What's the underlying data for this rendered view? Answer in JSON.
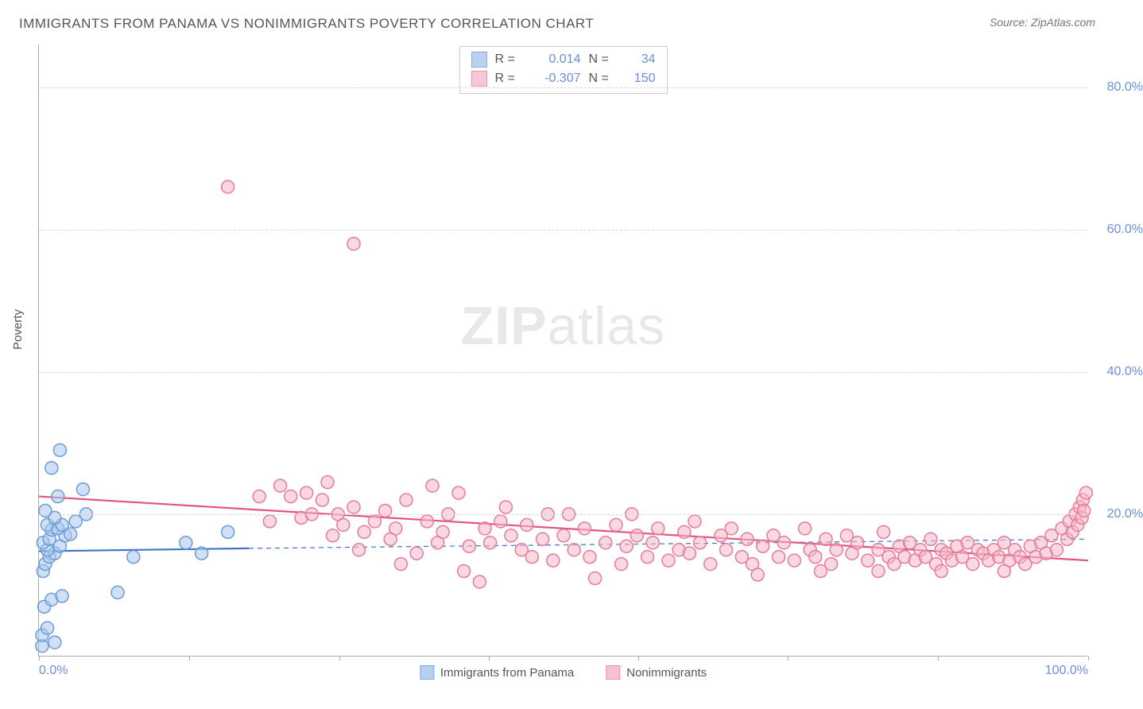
{
  "title": "IMMIGRANTS FROM PANAMA VS NONIMMIGRANTS POVERTY CORRELATION CHART",
  "source_label": "Source:",
  "source_value": "ZipAtlas.com",
  "ylabel": "Poverty",
  "watermark_a": "ZIP",
  "watermark_b": "atlas",
  "chart": {
    "type": "scatter",
    "xlim": [
      0,
      100
    ],
    "ylim": [
      0,
      86
    ],
    "y_ticks": [
      20,
      40,
      60,
      80
    ],
    "y_tick_labels": [
      "20.0%",
      "40.0%",
      "60.0%",
      "80.0%"
    ],
    "x_tick_marks": [
      0,
      14.3,
      28.6,
      42.9,
      57.1,
      71.4,
      85.7,
      100
    ],
    "x_tick_labels": [
      {
        "pos": 0,
        "label": "0.0%"
      },
      {
        "pos": 100,
        "label": "100.0%"
      }
    ],
    "grid_color": "#d8d8d8",
    "axis_color": "#aaaaaa",
    "tick_label_color": "#6b8fd6",
    "background_color": "#ffffff",
    "marker_radius": 8,
    "marker_stroke_width": 1.5,
    "series": [
      {
        "name": "Immigrants from Panama",
        "fill_color": "#a9c7ec",
        "stroke_color": "#6b9bd8",
        "fill_opacity": 0.55,
        "R": "0.014",
        "N": "34",
        "trend": {
          "x1": 0,
          "y1": 14.8,
          "x2": 20,
          "y2": 15.2,
          "color": "#3f74c7",
          "width": 2.2,
          "dash_x2": 100,
          "dash_y2": 16.5,
          "dash_pattern": "6,5"
        },
        "points": [
          [
            0.3,
            1.5
          ],
          [
            0.3,
            3
          ],
          [
            0.8,
            4
          ],
          [
            1.5,
            2
          ],
          [
            0.5,
            7
          ],
          [
            1.2,
            8
          ],
          [
            2.2,
            8.5
          ],
          [
            7.5,
            9
          ],
          [
            0.4,
            12
          ],
          [
            0.6,
            13
          ],
          [
            1.0,
            14
          ],
          [
            1.5,
            14.5
          ],
          [
            0.8,
            15
          ],
          [
            2.0,
            15.5
          ],
          [
            0.4,
            16
          ],
          [
            1.0,
            16.5
          ],
          [
            2.5,
            17
          ],
          [
            3.0,
            17.2
          ],
          [
            1.2,
            17.8
          ],
          [
            1.8,
            18
          ],
          [
            0.8,
            18.5
          ],
          [
            2.2,
            18.5
          ],
          [
            3.5,
            19
          ],
          [
            1.5,
            19.5
          ],
          [
            4.5,
            20
          ],
          [
            0.6,
            20.5
          ],
          [
            1.8,
            22.5
          ],
          [
            4.2,
            23.5
          ],
          [
            1.2,
            26.5
          ],
          [
            2.0,
            29
          ],
          [
            14,
            16
          ],
          [
            15.5,
            14.5
          ],
          [
            18,
            17.5
          ],
          [
            9,
            14
          ]
        ]
      },
      {
        "name": "Nonimmigrants",
        "fill_color": "#f5b8c8",
        "stroke_color": "#e77a9a",
        "fill_opacity": 0.55,
        "R": "-0.307",
        "N": "150",
        "trend": {
          "x1": 0,
          "y1": 22.5,
          "x2": 100,
          "y2": 13.5,
          "color": "#e25580",
          "width": 2.2
        },
        "points": [
          [
            18,
            66
          ],
          [
            30,
            58
          ],
          [
            21,
            22.5
          ],
          [
            22,
            19
          ],
          [
            23,
            24
          ],
          [
            24,
            22.5
          ],
          [
            25,
            19.5
          ],
          [
            25.5,
            23
          ],
          [
            26,
            20
          ],
          [
            27,
            22
          ],
          [
            27.5,
            24.5
          ],
          [
            28,
            17
          ],
          [
            28.5,
            20
          ],
          [
            29,
            18.5
          ],
          [
            30,
            21
          ],
          [
            31,
            17.5
          ],
          [
            32,
            19
          ],
          [
            33,
            20.5
          ],
          [
            33.5,
            16.5
          ],
          [
            34,
            18
          ],
          [
            35,
            22
          ],
          [
            36,
            14.5
          ],
          [
            37,
            19
          ],
          [
            37.5,
            24
          ],
          [
            38,
            16
          ],
          [
            38.5,
            17.5
          ],
          [
            39,
            20
          ],
          [
            40,
            23
          ],
          [
            41,
            15.5
          ],
          [
            42,
            10.5
          ],
          [
            42.5,
            18
          ],
          [
            43,
            16
          ],
          [
            44,
            19
          ],
          [
            45,
            17
          ],
          [
            46,
            15
          ],
          [
            46.5,
            18.5
          ],
          [
            47,
            14
          ],
          [
            48,
            16.5
          ],
          [
            48.5,
            20
          ],
          [
            49,
            13.5
          ],
          [
            50,
            17
          ],
          [
            51,
            15
          ],
          [
            52,
            18
          ],
          [
            52.5,
            14
          ],
          [
            53,
            11
          ],
          [
            54,
            16
          ],
          [
            55,
            18.5
          ],
          [
            55.5,
            13
          ],
          [
            56,
            15.5
          ],
          [
            57,
            17
          ],
          [
            58,
            14
          ],
          [
            58.5,
            16
          ],
          [
            59,
            18
          ],
          [
            60,
            13.5
          ],
          [
            61,
            15
          ],
          [
            61.5,
            17.5
          ],
          [
            62,
            14.5
          ],
          [
            63,
            16
          ],
          [
            64,
            13
          ],
          [
            65,
            17
          ],
          [
            65.5,
            15
          ],
          [
            66,
            18
          ],
          [
            67,
            14
          ],
          [
            67.5,
            16.5
          ],
          [
            68,
            13
          ],
          [
            69,
            15.5
          ],
          [
            70,
            17
          ],
          [
            70.5,
            14
          ],
          [
            71,
            16
          ],
          [
            72,
            13.5
          ],
          [
            73,
            18
          ],
          [
            73.5,
            15
          ],
          [
            74,
            14
          ],
          [
            75,
            16.5
          ],
          [
            75.5,
            13
          ],
          [
            76,
            15
          ],
          [
            77,
            17
          ],
          [
            77.5,
            14.5
          ],
          [
            78,
            16
          ],
          [
            79,
            13.5
          ],
          [
            80,
            15
          ],
          [
            80.5,
            17.5
          ],
          [
            81,
            14
          ],
          [
            81.5,
            13
          ],
          [
            82,
            15.5
          ],
          [
            82.5,
            14
          ],
          [
            83,
            16
          ],
          [
            83.5,
            13.5
          ],
          [
            84,
            15
          ],
          [
            84.5,
            14
          ],
          [
            85,
            16.5
          ],
          [
            85.5,
            13
          ],
          [
            86,
            15
          ],
          [
            86.5,
            14.5
          ],
          [
            87,
            13.5
          ],
          [
            87.5,
            15.5
          ],
          [
            88,
            14
          ],
          [
            88.5,
            16
          ],
          [
            89,
            13
          ],
          [
            89.5,
            15
          ],
          [
            90,
            14.5
          ],
          [
            90.5,
            13.5
          ],
          [
            91,
            15
          ],
          [
            91.5,
            14
          ],
          [
            92,
            16
          ],
          [
            92.5,
            13.5
          ],
          [
            93,
            15
          ],
          [
            93.5,
            14
          ],
          [
            94,
            13
          ],
          [
            94.5,
            15.5
          ],
          [
            95,
            14
          ],
          [
            95.5,
            16
          ],
          [
            96,
            14.5
          ],
          [
            96.5,
            17
          ],
          [
            97,
            15
          ],
          [
            97.5,
            18
          ],
          [
            98,
            16.5
          ],
          [
            98.2,
            19
          ],
          [
            98.5,
            17.5
          ],
          [
            98.8,
            20
          ],
          [
            99,
            18.5
          ],
          [
            99.2,
            21
          ],
          [
            99.4,
            19.5
          ],
          [
            99.5,
            22
          ],
          [
            99.6,
            20.5
          ],
          [
            99.8,
            23
          ],
          [
            30.5,
            15
          ],
          [
            34.5,
            13
          ],
          [
            40.5,
            12
          ],
          [
            44.5,
            21
          ],
          [
            50.5,
            20
          ],
          [
            56.5,
            20
          ],
          [
            62.5,
            19
          ],
          [
            68.5,
            11.5
          ],
          [
            74.5,
            12
          ],
          [
            80,
            12
          ],
          [
            86,
            12
          ],
          [
            92,
            12
          ]
        ]
      }
    ]
  },
  "stats_box": {
    "r_label": "R =",
    "n_label": "N ="
  },
  "legend": {
    "items": [
      "Immigrants from Panama",
      "Nonimmigrants"
    ]
  }
}
